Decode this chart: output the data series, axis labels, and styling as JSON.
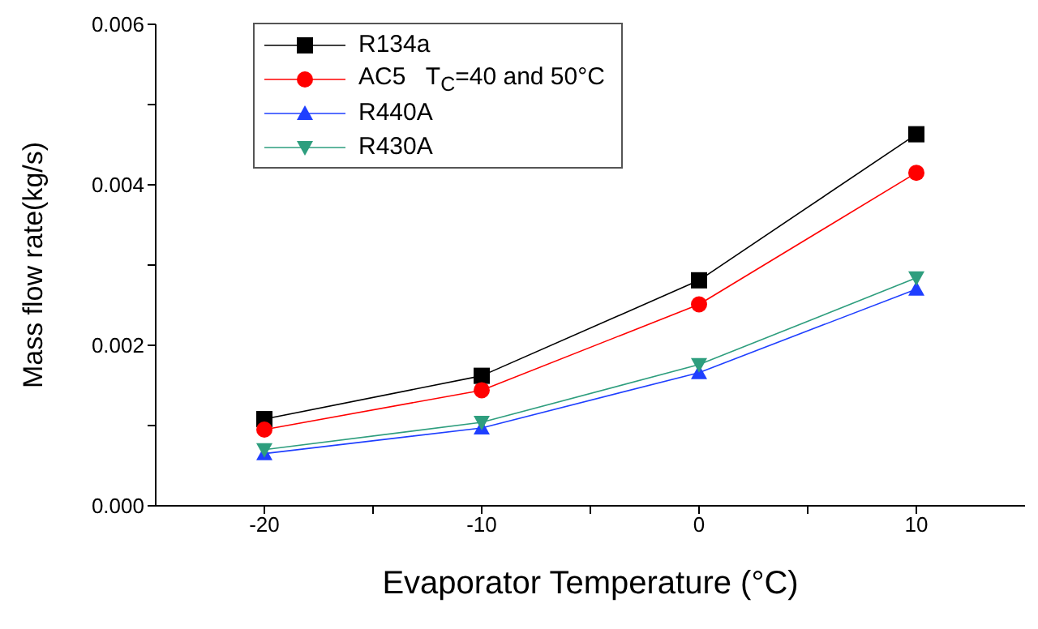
{
  "chart_data": {
    "type": "line",
    "xlabel": "Evaporator Temperature (°C)",
    "ylabel": "Mass flow rate(kg/s)",
    "x": [
      -20,
      -10,
      0,
      10
    ],
    "series": [
      {
        "name": "R134a",
        "color": "#000000",
        "marker": "square",
        "values": [
          0.00108,
          0.00162,
          0.00281,
          0.00463
        ]
      },
      {
        "name": "AC5   T$_{C}$=40 and 50°C",
        "color": "#ff0000",
        "marker": "circle",
        "values": [
          0.00095,
          0.00144,
          0.00251,
          0.00415
        ]
      },
      {
        "name": "R440A",
        "color": "#1f3fff",
        "marker": "triangle",
        "values": [
          0.00065,
          0.00097,
          0.00166,
          0.0027
        ]
      },
      {
        "name": "R430A",
        "color": "#2e9e7e",
        "marker": "triangle-down",
        "values": [
          0.0007,
          0.00104,
          0.00176,
          0.00284
        ]
      }
    ],
    "xlim": [
      -25,
      15
    ],
    "xticks": [
      {
        "value": -20,
        "label": "-20"
      },
      {
        "value": -15,
        "label": null
      },
      {
        "value": -10,
        "label": "-10"
      },
      {
        "value": -5,
        "label": null
      },
      {
        "value": 0,
        "label": "0"
      },
      {
        "value": 5,
        "label": null
      },
      {
        "value": 10,
        "label": "10"
      }
    ],
    "ylim": [
      0,
      0.006
    ],
    "yticks": [
      {
        "value": 0,
        "label": "0.000"
      },
      {
        "value": 0.001,
        "label": null
      },
      {
        "value": 0.002,
        "label": "0.002"
      },
      {
        "value": 0.003,
        "label": null
      },
      {
        "value": 0.004,
        "label": "0.004"
      },
      {
        "value": 0.005,
        "label": null
      },
      {
        "value": 0.006,
        "label": "0.006"
      }
    ],
    "grid": false,
    "legend": "top left",
    "line_style": "solid"
  }
}
